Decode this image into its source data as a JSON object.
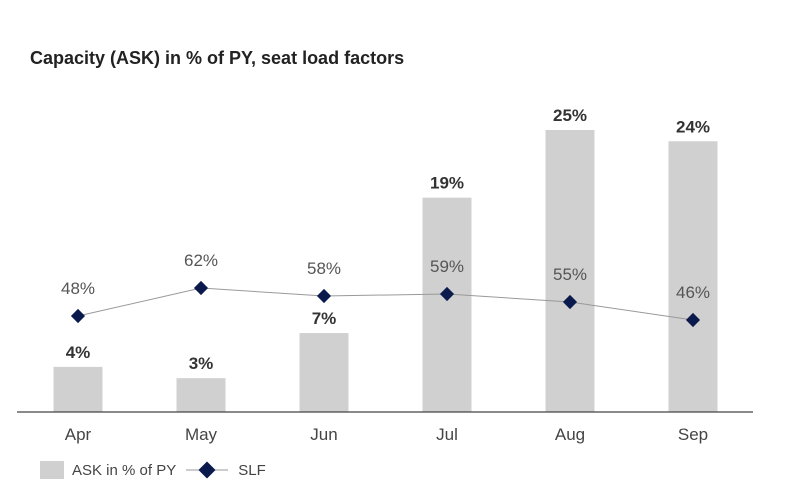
{
  "chart_data": {
    "type": "bar",
    "title": "Capacity (ASK) in % of PY, seat load factors",
    "categories": [
      "Apr",
      "May",
      "Jun",
      "Jul",
      "Aug",
      "Sep"
    ],
    "series": [
      {
        "name": "ASK in % of PY",
        "type": "bar",
        "values": [
          4,
          3,
          7,
          19,
          25,
          24
        ],
        "labels": [
          "4%",
          "3%",
          "7%",
          "19%",
          "25%",
          "24%"
        ],
        "color": "#d0d0d0"
      },
      {
        "name": "SLF",
        "type": "line",
        "values": [
          48,
          62,
          58,
          59,
          55,
          46
        ],
        "labels": [
          "48%",
          "62%",
          "58%",
          "59%",
          "55%",
          "46%"
        ],
        "color": "#0b1a4d",
        "line_color": "#999999"
      }
    ],
    "xlabel": "",
    "ylabel": "",
    "grid": false,
    "legend": "bottom-left"
  }
}
